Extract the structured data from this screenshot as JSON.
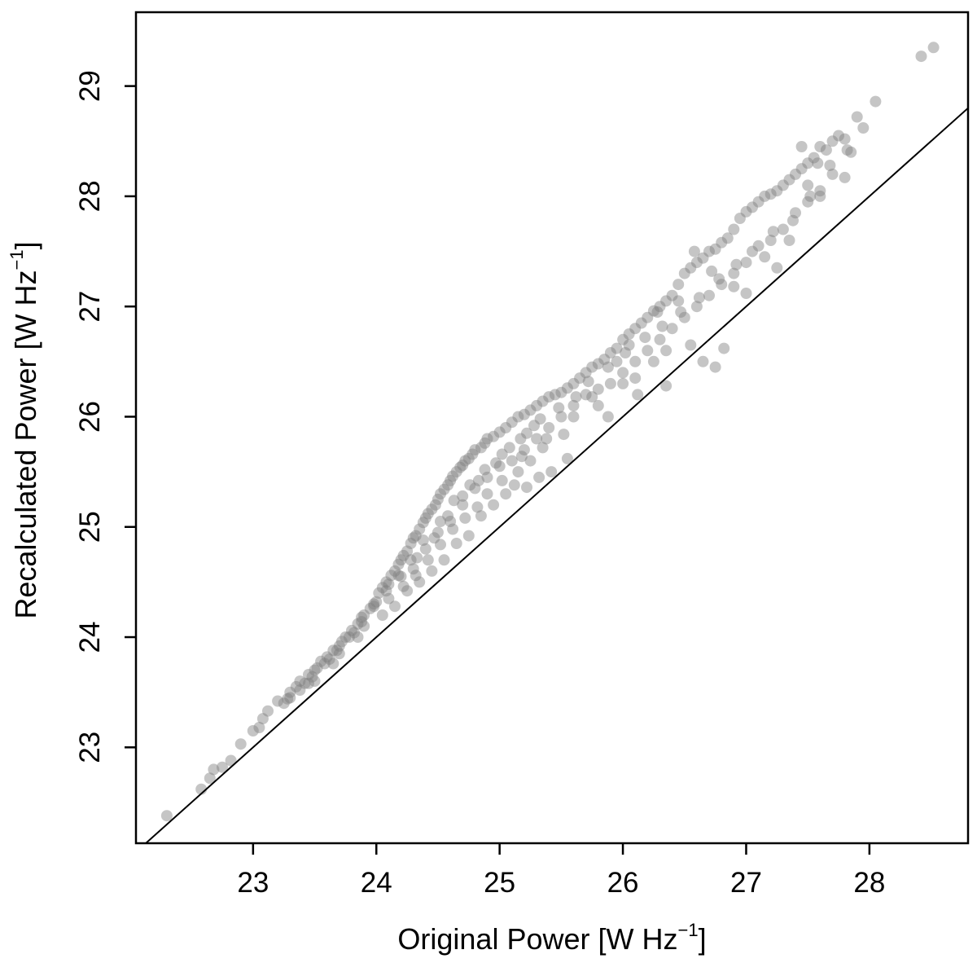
{
  "colors": {
    "point": "#7f7f7f",
    "axis": "#000000",
    "reference_line": "#000000",
    "background": "#ffffff"
  },
  "chart_data": {
    "type": "scatter",
    "title": "",
    "xlabel": {
      "text": "Original Power [W  Hz",
      "exponent": "−1",
      "close": "]"
    },
    "ylabel": {
      "text": "Recalculated Power [W  Hz",
      "exponent": "−1",
      "close": "]"
    },
    "xlim": [
      22.05,
      28.8
    ],
    "ylim": [
      22.13,
      29.67
    ],
    "xticks": [
      "23",
      "24",
      "25",
      "26",
      "27",
      "28"
    ],
    "yticks": [
      "23",
      "24",
      "25",
      "26",
      "27",
      "28",
      "29"
    ],
    "grid": false,
    "legend": "none",
    "reference_line": {
      "type": "identity",
      "description": "y = x"
    },
    "point_alpha": 0.45,
    "series": [
      {
        "points": [
          [
            22.3,
            22.38
          ],
          [
            22.58,
            22.62
          ],
          [
            22.65,
            22.72
          ],
          [
            22.68,
            22.8
          ],
          [
            22.75,
            22.82
          ],
          [
            22.82,
            22.88
          ],
          [
            22.9,
            23.03
          ],
          [
            23.0,
            23.15
          ],
          [
            23.05,
            23.18
          ],
          [
            23.08,
            23.26
          ],
          [
            23.12,
            23.33
          ],
          [
            23.2,
            23.42
          ],
          [
            23.25,
            23.4
          ],
          [
            23.3,
            23.5
          ],
          [
            23.35,
            23.55
          ],
          [
            23.38,
            23.6
          ],
          [
            23.42,
            23.58
          ],
          [
            23.45,
            23.66
          ],
          [
            23.5,
            23.7
          ],
          [
            23.52,
            23.72
          ],
          [
            23.55,
            23.78
          ],
          [
            23.6,
            23.82
          ],
          [
            23.62,
            23.8
          ],
          [
            23.65,
            23.88
          ],
          [
            23.7,
            23.92
          ],
          [
            23.72,
            23.96
          ],
          [
            23.75,
            24.0
          ],
          [
            23.8,
            24.06
          ],
          [
            23.82,
            24.04
          ],
          [
            23.85,
            24.12
          ],
          [
            23.88,
            24.18
          ],
          [
            23.9,
            24.2
          ],
          [
            23.95,
            24.26
          ],
          [
            23.98,
            24.3
          ],
          [
            24.0,
            24.32
          ],
          [
            24.02,
            24.4
          ],
          [
            24.05,
            24.45
          ],
          [
            24.08,
            24.5
          ],
          [
            24.1,
            24.48
          ],
          [
            24.12,
            24.56
          ],
          [
            24.15,
            24.6
          ],
          [
            24.18,
            24.66
          ],
          [
            24.2,
            24.7
          ],
          [
            24.22,
            24.74
          ],
          [
            24.25,
            24.78
          ],
          [
            24.28,
            24.85
          ],
          [
            24.3,
            24.9
          ],
          [
            24.32,
            24.92
          ],
          [
            24.35,
            24.98
          ],
          [
            24.38,
            25.04
          ],
          [
            24.4,
            25.08
          ],
          [
            24.42,
            25.12
          ],
          [
            24.45,
            25.16
          ],
          [
            24.48,
            25.2
          ],
          [
            24.5,
            25.25
          ],
          [
            24.52,
            25.3
          ],
          [
            24.55,
            25.34
          ],
          [
            24.58,
            25.38
          ],
          [
            24.6,
            25.42
          ],
          [
            24.62,
            25.46
          ],
          [
            24.65,
            25.5
          ],
          [
            24.68,
            25.54
          ],
          [
            24.7,
            25.56
          ],
          [
            24.72,
            25.6
          ],
          [
            24.75,
            25.62
          ],
          [
            24.78,
            25.66
          ],
          [
            24.8,
            25.7
          ],
          [
            24.85,
            25.72
          ],
          [
            24.88,
            25.76
          ],
          [
            24.9,
            25.8
          ],
          [
            24.95,
            25.82
          ],
          [
            25.0,
            25.86
          ],
          [
            25.05,
            25.9
          ],
          [
            25.1,
            25.95
          ],
          [
            25.15,
            26.0
          ],
          [
            25.2,
            26.02
          ],
          [
            25.25,
            26.06
          ],
          [
            25.3,
            26.1
          ],
          [
            25.35,
            26.14
          ],
          [
            25.4,
            26.18
          ],
          [
            25.45,
            26.2
          ],
          [
            25.5,
            26.22
          ],
          [
            25.55,
            26.26
          ],
          [
            25.6,
            26.3
          ],
          [
            25.65,
            26.35
          ],
          [
            25.7,
            26.4
          ],
          [
            25.75,
            26.45
          ],
          [
            25.8,
            26.48
          ],
          [
            25.85,
            26.52
          ],
          [
            25.9,
            26.58
          ],
          [
            25.95,
            26.62
          ],
          [
            26.0,
            26.7
          ],
          [
            26.05,
            26.75
          ],
          [
            26.1,
            26.8
          ],
          [
            26.15,
            26.85
          ],
          [
            26.2,
            26.9
          ],
          [
            26.25,
            26.96
          ],
          [
            26.3,
            27.0
          ],
          [
            26.35,
            27.05
          ],
          [
            26.4,
            27.1
          ],
          [
            26.45,
            27.2
          ],
          [
            26.5,
            27.3
          ],
          [
            26.55,
            27.35
          ],
          [
            26.6,
            27.4
          ],
          [
            26.65,
            27.44
          ],
          [
            26.7,
            27.5
          ],
          [
            26.75,
            27.52
          ],
          [
            26.8,
            27.58
          ],
          [
            26.85,
            27.62
          ],
          [
            26.9,
            27.7
          ],
          [
            26.95,
            27.8
          ],
          [
            27.0,
            27.86
          ],
          [
            27.05,
            27.9
          ],
          [
            27.1,
            27.95
          ],
          [
            27.15,
            28.0
          ],
          [
            27.2,
            28.02
          ],
          [
            27.25,
            28.05
          ],
          [
            27.3,
            28.1
          ],
          [
            27.35,
            28.15
          ],
          [
            27.4,
            28.2
          ],
          [
            27.45,
            28.25
          ],
          [
            27.5,
            28.3
          ],
          [
            27.55,
            28.35
          ],
          [
            27.6,
            28.45
          ],
          [
            27.65,
            28.42
          ],
          [
            27.7,
            28.5
          ],
          [
            27.75,
            28.55
          ],
          [
            27.8,
            28.52
          ],
          [
            27.85,
            28.4
          ],
          [
            27.9,
            28.72
          ],
          [
            27.95,
            28.62
          ],
          [
            28.05,
            28.86
          ],
          [
            28.42,
            29.27
          ],
          [
            28.52,
            29.35
          ],
          [
            23.5,
            23.6
          ],
          [
            23.7,
            23.85
          ],
          [
            23.9,
            24.1
          ],
          [
            24.1,
            24.35
          ],
          [
            24.3,
            24.62
          ],
          [
            24.4,
            24.8
          ],
          [
            24.5,
            24.95
          ],
          [
            24.6,
            25.05
          ],
          [
            24.7,
            25.2
          ],
          [
            24.8,
            25.35
          ],
          [
            24.9,
            25.45
          ],
          [
            25.0,
            25.55
          ],
          [
            25.1,
            25.6
          ],
          [
            25.2,
            25.7
          ],
          [
            25.3,
            25.8
          ],
          [
            25.4,
            25.9
          ],
          [
            25.5,
            26.0
          ],
          [
            25.6,
            26.1
          ],
          [
            25.7,
            26.2
          ],
          [
            25.8,
            26.25
          ],
          [
            25.9,
            26.3
          ],
          [
            26.0,
            26.4
          ],
          [
            26.1,
            26.5
          ],
          [
            26.2,
            26.6
          ],
          [
            26.3,
            26.7
          ],
          [
            26.4,
            26.8
          ],
          [
            26.5,
            26.9
          ],
          [
            26.6,
            27.0
          ],
          [
            26.7,
            27.1
          ],
          [
            26.8,
            27.2
          ],
          [
            26.9,
            27.3
          ],
          [
            27.0,
            27.4
          ],
          [
            27.1,
            27.55
          ],
          [
            27.2,
            27.6
          ],
          [
            27.3,
            27.7
          ],
          [
            27.4,
            27.85
          ],
          [
            27.5,
            27.95
          ],
          [
            27.6,
            28.05
          ],
          [
            27.7,
            28.2
          ],
          [
            27.8,
            28.17
          ],
          [
            26.1,
            26.35
          ],
          [
            26.25,
            26.5
          ],
          [
            26.9,
            27.18
          ],
          [
            27.0,
            27.12
          ],
          [
            25.8,
            26.1
          ],
          [
            26.0,
            26.3
          ],
          [
            26.55,
            26.65
          ],
          [
            26.35,
            26.6
          ],
          [
            27.35,
            27.6
          ],
          [
            27.15,
            27.45
          ],
          [
            27.6,
            28.0
          ],
          [
            27.5,
            28.1
          ],
          [
            25.25,
            25.6
          ],
          [
            25.35,
            25.72
          ],
          [
            25.15,
            25.5
          ],
          [
            24.95,
            25.2
          ],
          [
            24.75,
            24.92
          ],
          [
            24.55,
            24.7
          ],
          [
            24.35,
            24.5
          ],
          [
            24.15,
            24.28
          ],
          [
            24.85,
            25.1
          ],
          [
            25.05,
            25.3
          ],
          [
            24.65,
            24.85
          ],
          [
            24.45,
            24.6
          ],
          [
            24.25,
            24.42
          ],
          [
            24.05,
            24.2
          ],
          [
            23.85,
            24.0
          ],
          [
            23.65,
            23.76
          ],
          [
            23.45,
            23.58
          ],
          [
            23.3,
            23.45
          ],
          [
            24.2,
            24.55
          ],
          [
            24.33,
            24.72
          ],
          [
            24.47,
            24.9
          ],
          [
            24.58,
            25.1
          ],
          [
            24.7,
            25.28
          ],
          [
            24.83,
            25.42
          ],
          [
            24.97,
            25.58
          ],
          [
            25.08,
            25.72
          ],
          [
            25.22,
            25.85
          ],
          [
            25.33,
            25.98
          ],
          [
            25.48,
            26.08
          ],
          [
            25.62,
            26.18
          ],
          [
            25.72,
            26.32
          ],
          [
            25.88,
            26.45
          ],
          [
            26.02,
            26.58
          ],
          [
            26.18,
            26.72
          ],
          [
            26.32,
            26.82
          ],
          [
            26.47,
            26.95
          ],
          [
            26.62,
            27.08
          ],
          [
            26.78,
            27.25
          ],
          [
            26.92,
            27.38
          ],
          [
            27.05,
            27.5
          ],
          [
            27.22,
            27.68
          ],
          [
            27.38,
            27.78
          ],
          [
            27.52,
            28.0
          ],
          [
            27.68,
            28.28
          ],
          [
            25.88,
            26.0
          ],
          [
            26.12,
            26.2
          ],
          [
            26.35,
            26.28
          ],
          [
            26.65,
            26.5
          ],
          [
            26.82,
            26.62
          ],
          [
            27.25,
            27.35
          ],
          [
            26.75,
            26.45
          ],
          [
            25.95,
            26.5
          ],
          [
            26.45,
            27.05
          ],
          [
            26.72,
            27.32
          ],
          [
            26.58,
            27.5
          ],
          [
            27.45,
            28.45
          ],
          [
            27.58,
            28.3
          ],
          [
            27.82,
            28.42
          ],
          [
            25.6,
            26.0
          ],
          [
            25.52,
            25.84
          ],
          [
            25.75,
            26.18
          ],
          [
            26.05,
            26.65
          ],
          [
            26.28,
            26.95
          ],
          [
            24.38,
            24.88
          ],
          [
            24.52,
            25.05
          ],
          [
            24.63,
            25.24
          ],
          [
            24.76,
            25.38
          ],
          [
            24.88,
            25.52
          ],
          [
            25.02,
            25.66
          ],
          [
            25.17,
            25.8
          ],
          [
            25.28,
            25.92
          ],
          [
            24.28,
            24.7
          ],
          [
            24.18,
            24.56
          ],
          [
            24.08,
            24.42
          ],
          [
            23.98,
            24.28
          ],
          [
            23.88,
            24.14
          ],
          [
            23.78,
            24.0
          ],
          [
            23.68,
            23.88
          ],
          [
            23.58,
            23.76
          ],
          [
            23.48,
            23.64
          ],
          [
            23.38,
            23.52
          ],
          [
            23.28,
            23.44
          ],
          [
            24.9,
            25.3
          ],
          [
            25.12,
            25.38
          ],
          [
            25.42,
            25.5
          ],
          [
            25.55,
            25.62
          ],
          [
            25.32,
            25.45
          ],
          [
            25.22,
            25.36
          ],
          [
            24.62,
            24.98
          ],
          [
            24.52,
            24.84
          ],
          [
            24.42,
            24.7
          ],
          [
            24.32,
            24.56
          ],
          [
            24.22,
            24.46
          ],
          [
            24.82,
            25.18
          ],
          [
            24.72,
            25.08
          ],
          [
            25.02,
            25.42
          ],
          [
            25.18,
            25.64
          ],
          [
            25.38,
            25.8
          ]
        ]
      }
    ]
  }
}
